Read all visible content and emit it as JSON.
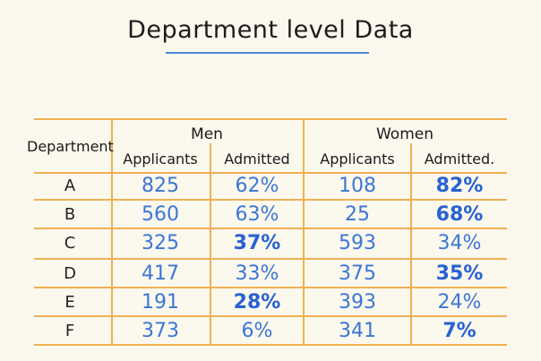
{
  "title": "Department level Data",
  "headers": {
    "department": "Department",
    "men": "Men",
    "women": "Women",
    "men_applicants": "Applicants",
    "men_admitted": "Admitted",
    "women_applicants": "Applicants",
    "women_admitted": "Admitted."
  },
  "rows": [
    {
      "dept": "A",
      "men_app": "825",
      "men_adm": "62%",
      "women_app": "108",
      "women_adm": "82%"
    },
    {
      "dept": "B",
      "men_app": "560",
      "men_adm": "63%",
      "women_app": "25",
      "women_adm": "68%"
    },
    {
      "dept": "C",
      "men_app": "325",
      "men_adm": "37%",
      "women_app": "593",
      "women_adm": "34%"
    },
    {
      "dept": "D",
      "men_app": "417",
      "men_adm": "33%",
      "women_app": "375",
      "women_adm": "35%"
    },
    {
      "dept": "E",
      "men_app": "191",
      "men_adm": "28%",
      "women_app": "393",
      "women_adm": "24%"
    },
    {
      "dept": "F",
      "men_app": "373",
      "men_adm": "6%",
      "women_app": "341",
      "women_adm": "7%"
    }
  ],
  "highlighted": [
    "men_adm-C",
    "men_adm-E",
    "women_adm-A",
    "women_adm-B",
    "women_adm-D",
    "women_adm-F"
  ],
  "colors": {
    "grid": "#f0b052",
    "ink": "#3b76d6",
    "accent": "#2762d2",
    "underline": "#4f88d8"
  }
}
